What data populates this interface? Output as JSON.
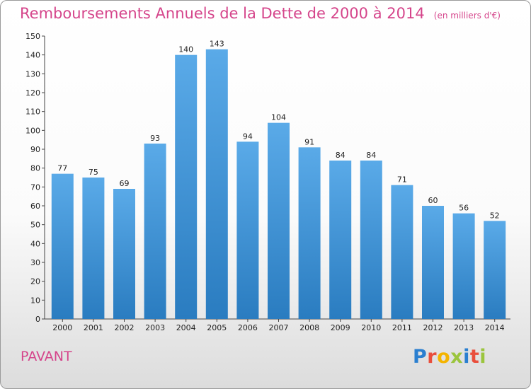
{
  "header": {
    "title": "Remboursements Annuels de la Dette de 2000 à 2014",
    "subtitle": "(en milliers d'€)"
  },
  "footer": {
    "commune": "PAVANT",
    "logo_text": "Proxiti",
    "logo_colors": [
      "#2a7fd0",
      "#e94e3c",
      "#f4b400",
      "#9bc53d",
      "#2a7fd0",
      "#e94e3c",
      "#9bc53d"
    ]
  },
  "chart_data": {
    "type": "bar",
    "categories": [
      "2000",
      "2001",
      "2002",
      "2003",
      "2004",
      "2005",
      "2006",
      "2007",
      "2008",
      "2009",
      "2010",
      "2011",
      "2012",
      "2013",
      "2014"
    ],
    "values": [
      77,
      75,
      69,
      93,
      140,
      143,
      94,
      104,
      91,
      84,
      84,
      71,
      60,
      56,
      52
    ],
    "ylim": [
      0,
      150
    ],
    "ytick_step": 10,
    "grid": false,
    "bar_color_top": "#5aaae8",
    "bar_color_bottom": "#2a7cc0"
  }
}
